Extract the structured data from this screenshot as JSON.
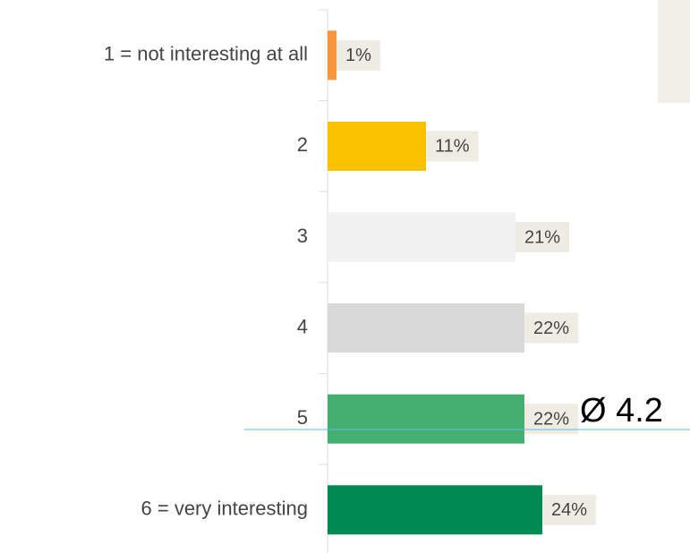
{
  "chart_data": {
    "type": "hbar",
    "categories": [
      "1 = not interesting at all",
      "2",
      "3",
      "4",
      "5",
      "6 = very interesting"
    ],
    "values": [
      1,
      11,
      21,
      22,
      22,
      24
    ],
    "value_labels": [
      "1%",
      "11%",
      "21%",
      "22%",
      "22%",
      "24%"
    ],
    "colors": [
      "#f7963a",
      "#f9c100",
      "#f1f1f1",
      "#d9d9d9",
      "#45ae71",
      "#008a52"
    ],
    "annotation": "Ø 4.2"
  }
}
